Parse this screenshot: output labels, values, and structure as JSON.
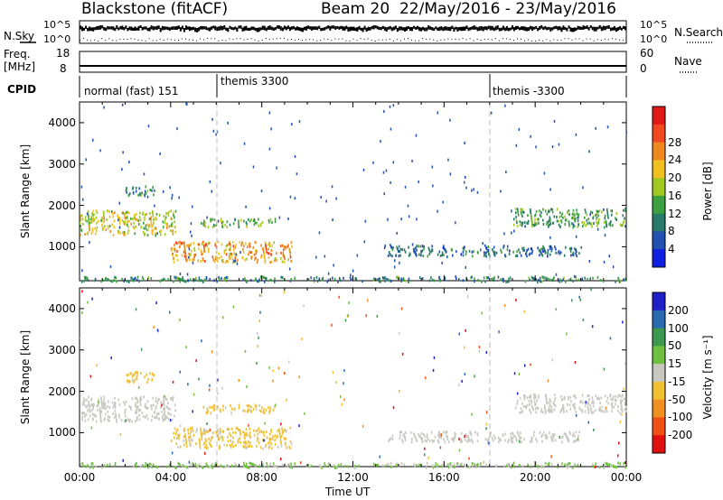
{
  "header": {
    "station": "Blackstone",
    "mode": "(fitACF)",
    "beam": "Beam 20",
    "date_range": "22/May/2016 - 23/May/2016"
  },
  "summary": {
    "nsky_label": "N.Sky",
    "nsky_ticks": [
      "10^5",
      "10^0"
    ],
    "nsearch_label": "N.Search",
    "nsearch_ticks": [
      "10^5",
      "10^0"
    ],
    "freq_label_1": "Freq.",
    "freq_label_2": "[MHz]",
    "freq_ticks": [
      "18",
      "8"
    ],
    "nave_label": "Nave",
    "nave_ticks": [
      "60",
      "0"
    ],
    "cpid_label": "CPID",
    "cpid_segments": [
      {
        "label": "normal (fast) 151",
        "start_hour": 0
      },
      {
        "label": "themis 3300",
        "start_hour": 6
      },
      {
        "label": "themis -3300",
        "start_hour": 18
      }
    ]
  },
  "axes": {
    "ylabel": "Slant Range [km]",
    "xlabel": "Time UT",
    "x_ticks": [
      "00:00",
      "04:00",
      "08:00",
      "12:00",
      "16:00",
      "20:00",
      "00:00"
    ],
    "y_ticks": [
      "1000",
      "2000",
      "3000",
      "4000"
    ]
  },
  "power_colorbar": {
    "label": "Power [dB]",
    "ticks": [
      "4",
      "8",
      "12",
      "16",
      "20",
      "24",
      "28"
    ],
    "colors": [
      "#1020e0",
      "#2050b0",
      "#2a7a6a",
      "#3ca040",
      "#a0c820",
      "#f0c020",
      "#f08820",
      "#f04820",
      "#e01818"
    ]
  },
  "velocity_colorbar": {
    "label": "Velocity [m s⁻¹]",
    "ticks": [
      "200",
      "100",
      "50",
      "15",
      "-15",
      "-50",
      "-100",
      "-200"
    ],
    "colors": [
      "#2020c8",
      "#2a6ab0",
      "#3c9a50",
      "#70c040",
      "#c8c8c0",
      "#f0c030",
      "#f09020",
      "#f05018",
      "#e01010"
    ]
  },
  "chart_data": [
    {
      "type": "heatmap",
      "name": "Power",
      "x_range_hours": [
        0,
        24
      ],
      "ylim": [
        180,
        4500
      ],
      "regions": [
        {
          "t": [
            0,
            4.2
          ],
          "range": [
            1300,
            1900
          ],
          "level_db": 16
        },
        {
          "t": [
            2.0,
            3.3
          ],
          "range": [
            2250,
            2500
          ],
          "level_db": 8
        },
        {
          "t": [
            4.0,
            9.3
          ],
          "range": [
            650,
            1150
          ],
          "level_db": 20
        },
        {
          "t": [
            5.3,
            8.6
          ],
          "range": [
            1500,
            1700
          ],
          "level_db": 12
        },
        {
          "t": [
            13.5,
            22.0
          ],
          "range": [
            800,
            1050
          ],
          "level_db": 6
        },
        {
          "t": [
            19.0,
            24.0
          ],
          "range": [
            1500,
            1950
          ],
          "level_db": 10
        },
        {
          "t": [
            0,
            24
          ],
          "range": [
            180,
            300
          ],
          "level_db": 8
        }
      ]
    },
    {
      "type": "heatmap",
      "name": "Velocity",
      "x_range_hours": [
        0,
        24
      ],
      "ylim": [
        180,
        4500
      ],
      "regions": [
        {
          "t": [
            0,
            4.2
          ],
          "range": [
            1300,
            1900
          ],
          "velocity": 0
        },
        {
          "t": [
            2.0,
            3.3
          ],
          "range": [
            2250,
            2500
          ],
          "velocity": -40
        },
        {
          "t": [
            4.0,
            9.3
          ],
          "range": [
            650,
            1150
          ],
          "velocity": -40
        },
        {
          "t": [
            5.3,
            8.6
          ],
          "range": [
            1500,
            1700
          ],
          "velocity": -40
        },
        {
          "t": [
            13.5,
            22.0
          ],
          "range": [
            800,
            1050
          ],
          "velocity": 0
        },
        {
          "t": [
            19.0,
            24.0
          ],
          "range": [
            1500,
            1950
          ],
          "velocity": 0
        },
        {
          "t": [
            0,
            24
          ],
          "range": [
            180,
            300
          ],
          "velocity": 30
        }
      ]
    }
  ]
}
